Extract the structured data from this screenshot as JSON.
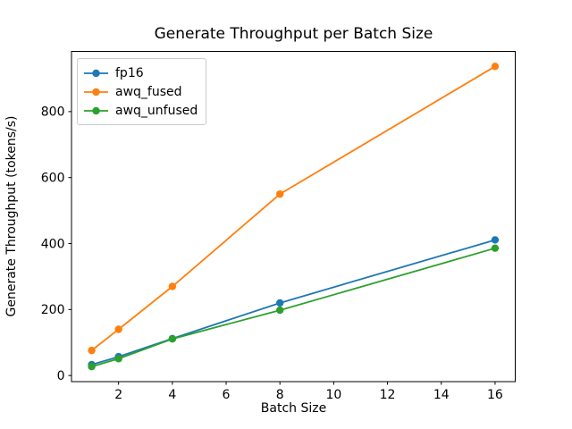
{
  "chart_data": {
    "type": "line",
    "title": "Generate Throughput per Batch Size",
    "xlabel": "Batch Size",
    "ylabel": "Generate Throughput (tokens/s)",
    "x": [
      1,
      2,
      4,
      8,
      16
    ],
    "series": [
      {
        "name": "fp16",
        "color": "#1f77b4",
        "marker": "circle",
        "values": [
          33,
          57,
          112,
          220,
          411
        ]
      },
      {
        "name": "awq_fused",
        "color": "#ff7f0e",
        "marker": "circle",
        "values": [
          76,
          140,
          270,
          550,
          937
        ]
      },
      {
        "name": "awq_unfused",
        "color": "#2ca02c",
        "marker": "circle",
        "values": [
          27,
          51,
          111,
          198,
          386
        ]
      }
    ],
    "xticks": [
      2,
      4,
      6,
      8,
      10,
      12,
      14,
      16
    ],
    "yticks": [
      0,
      200,
      400,
      600,
      800
    ],
    "xlim": [
      0.25,
      16.75
    ],
    "ylim": [
      -18.5,
      982.5
    ],
    "grid": false,
    "legend_position": "upper-left",
    "axis_color": "#000000",
    "background_color": "#ffffff"
  }
}
